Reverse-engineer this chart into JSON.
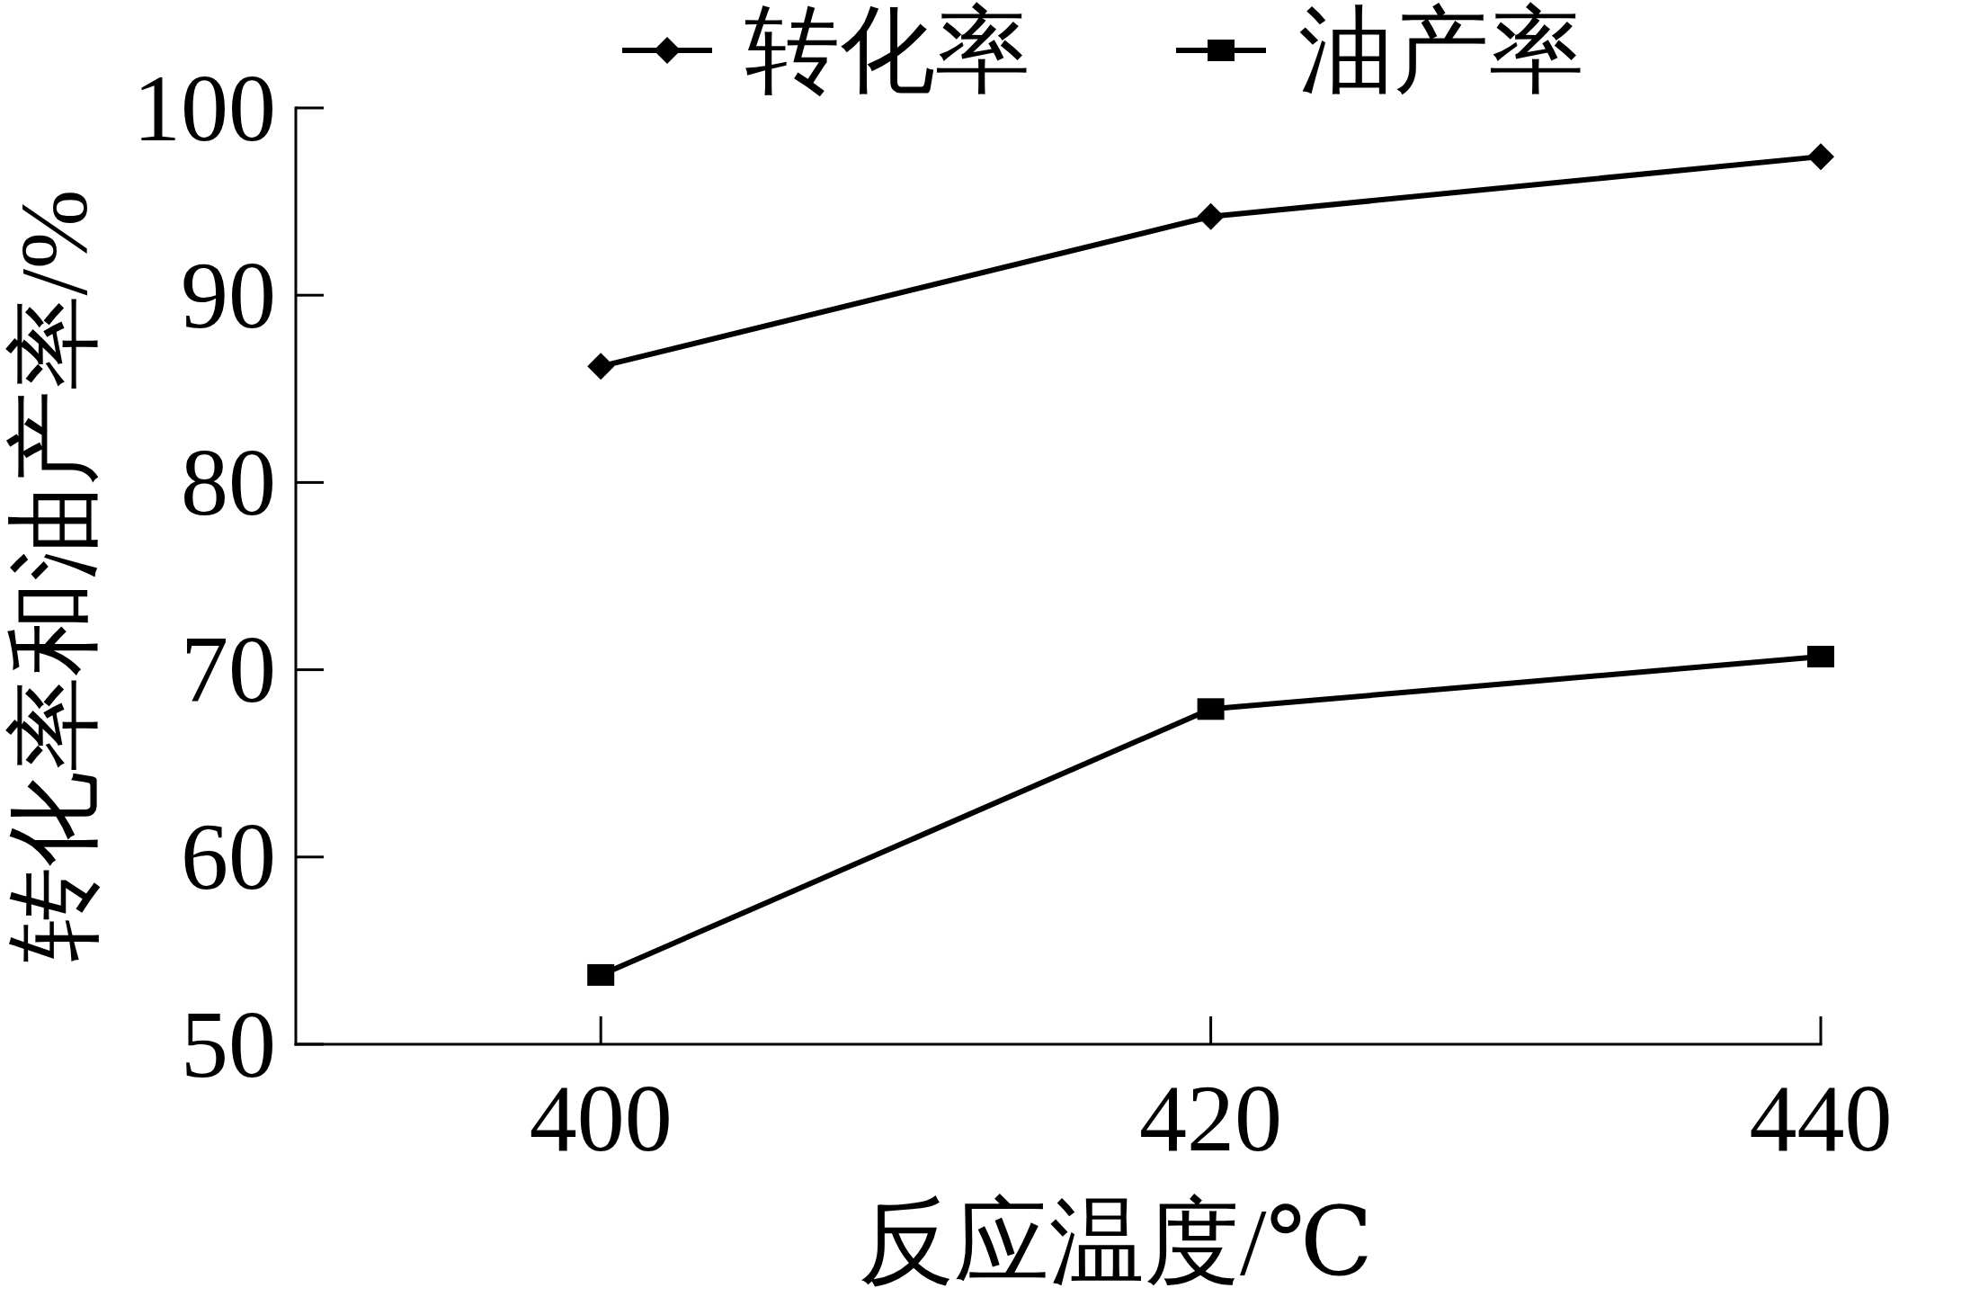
{
  "chart_data": {
    "type": "line",
    "xlabel": "反应温度/℃",
    "ylabel": "转化率和油产率/%",
    "x": [
      400,
      420,
      440
    ],
    "series": [
      {
        "name": "转化率",
        "color": "#000000",
        "marker": "diamond",
        "values": [
          86.2,
          94.2,
          97.4
        ]
      },
      {
        "name": "油产率",
        "color": "#000000",
        "marker": "square",
        "values": [
          53.7,
          67.9,
          70.7
        ]
      }
    ],
    "xlim": [
      390,
      440
    ],
    "ylim": [
      50,
      100
    ],
    "xticks": [
      400,
      420,
      440
    ],
    "yticks": [
      50,
      60,
      70,
      80,
      90,
      100
    ],
    "legend": "top"
  }
}
